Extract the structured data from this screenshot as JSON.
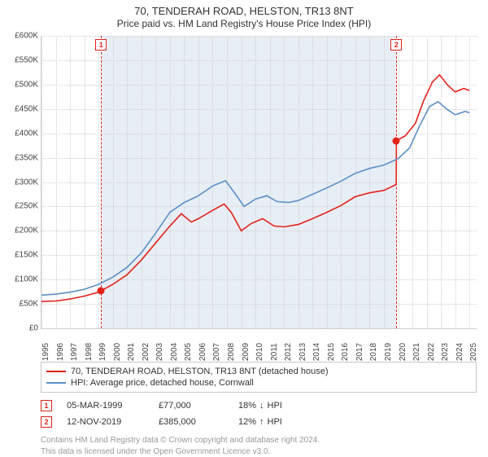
{
  "title": "70, TENDERAH ROAD, HELSTON, TR13 8NT",
  "subtitle": "Price paid vs. HM Land Registry's House Price Index (HPI)",
  "chart": {
    "type": "line",
    "background_color": "#ffffff",
    "grid_color": "#cfcfcf",
    "axis_color": "#cccccc",
    "shaded_band_color": "#e8eef5",
    "shaded_band": {
      "x_start": 1999.18,
      "x_end": 2019.87
    },
    "xlim": [
      1995,
      2025.5
    ],
    "ylim": [
      0,
      600000
    ],
    "y_ticks": [
      0,
      50000,
      100000,
      150000,
      200000,
      250000,
      300000,
      350000,
      400000,
      450000,
      500000,
      550000,
      600000
    ],
    "y_tick_labels": [
      "£0",
      "£50K",
      "£100K",
      "£150K",
      "£200K",
      "£250K",
      "£300K",
      "£350K",
      "£400K",
      "£450K",
      "£500K",
      "£550K",
      "£600K"
    ],
    "x_ticks": [
      1995,
      1996,
      1997,
      1998,
      1999,
      2000,
      2001,
      2002,
      2003,
      2004,
      2005,
      2006,
      2007,
      2008,
      2009,
      2010,
      2011,
      2012,
      2013,
      2014,
      2015,
      2016,
      2017,
      2018,
      2019,
      2020,
      2021,
      2022,
      2023,
      2024,
      2025
    ],
    "label_fontsize": 10,
    "title_fontsize": 13,
    "line_width": 1.6,
    "series": [
      {
        "key": "property",
        "label": "70, TENDERAH ROAD, HELSTON, TR13 8NT (detached house)",
        "color": "#e2231a",
        "points": [
          [
            1995.0,
            55000
          ],
          [
            1996.0,
            56000
          ],
          [
            1997.0,
            60000
          ],
          [
            1998.0,
            66000
          ],
          [
            1999.0,
            74000
          ],
          [
            1999.18,
            77000
          ],
          [
            2000.0,
            90000
          ],
          [
            2001.0,
            110000
          ],
          [
            2002.0,
            140000
          ],
          [
            2003.0,
            175000
          ],
          [
            2004.0,
            210000
          ],
          [
            2004.8,
            235000
          ],
          [
            2005.5,
            218000
          ],
          [
            2006.0,
            225000
          ],
          [
            2007.0,
            242000
          ],
          [
            2007.8,
            255000
          ],
          [
            2008.3,
            238000
          ],
          [
            2009.0,
            200000
          ],
          [
            2009.7,
            215000
          ],
          [
            2010.5,
            225000
          ],
          [
            2011.3,
            210000
          ],
          [
            2012.0,
            208000
          ],
          [
            2013.0,
            213000
          ],
          [
            2014.0,
            225000
          ],
          [
            2015.0,
            238000
          ],
          [
            2016.0,
            252000
          ],
          [
            2017.0,
            270000
          ],
          [
            2018.0,
            278000
          ],
          [
            2019.0,
            283000
          ],
          [
            2019.87,
            295000
          ],
          [
            2019.88,
            385000
          ],
          [
            2020.5,
            395000
          ],
          [
            2021.2,
            420000
          ],
          [
            2021.8,
            468000
          ],
          [
            2022.4,
            505000
          ],
          [
            2022.9,
            520000
          ],
          [
            2023.5,
            498000
          ],
          [
            2024.0,
            485000
          ],
          [
            2024.6,
            492000
          ],
          [
            2025.0,
            488000
          ]
        ]
      },
      {
        "key": "hpi",
        "label": "HPI: Average price, detached house, Cornwall",
        "color": "#5b8fc7",
        "points": [
          [
            1995.0,
            68000
          ],
          [
            1996.0,
            70000
          ],
          [
            1997.0,
            74000
          ],
          [
            1998.0,
            80000
          ],
          [
            1999.0,
            90000
          ],
          [
            2000.0,
            105000
          ],
          [
            2001.0,
            125000
          ],
          [
            2002.0,
            155000
          ],
          [
            2003.0,
            195000
          ],
          [
            2004.0,
            238000
          ],
          [
            2005.0,
            258000
          ],
          [
            2006.0,
            272000
          ],
          [
            2007.0,
            292000
          ],
          [
            2007.9,
            303000
          ],
          [
            2008.6,
            275000
          ],
          [
            2009.2,
            250000
          ],
          [
            2010.0,
            265000
          ],
          [
            2010.8,
            272000
          ],
          [
            2011.5,
            260000
          ],
          [
            2012.3,
            258000
          ],
          [
            2013.0,
            262000
          ],
          [
            2014.0,
            275000
          ],
          [
            2015.0,
            288000
          ],
          [
            2016.0,
            302000
          ],
          [
            2017.0,
            318000
          ],
          [
            2018.0,
            328000
          ],
          [
            2019.0,
            335000
          ],
          [
            2020.0,
            348000
          ],
          [
            2020.8,
            370000
          ],
          [
            2021.5,
            415000
          ],
          [
            2022.2,
            455000
          ],
          [
            2022.8,
            465000
          ],
          [
            2023.4,
            450000
          ],
          [
            2024.0,
            438000
          ],
          [
            2024.7,
            445000
          ],
          [
            2025.0,
            442000
          ]
        ]
      }
    ],
    "sale_markers": [
      {
        "n": 1,
        "x": 1999.18,
        "y": 77000,
        "color": "#e2231a"
      },
      {
        "n": 2,
        "x": 2019.87,
        "y": 385000,
        "color": "#e2231a"
      }
    ],
    "sale_vlines": [
      {
        "n": 1,
        "x": 1999.18,
        "color": "#e2231a",
        "label_y": "top"
      },
      {
        "n": 2,
        "x": 2019.87,
        "color": "#e2231a",
        "label_y": "top"
      }
    ]
  },
  "legend": {
    "series": [
      {
        "color": "#e2231a",
        "label": "70, TENDERAH ROAD, HELSTON, TR13 8NT (detached house)"
      },
      {
        "color": "#5b8fc7",
        "label": "HPI: Average price, detached house, Cornwall"
      }
    ]
  },
  "sales": [
    {
      "n": "1",
      "date": "05-MAR-1999",
      "price": "£77,000",
      "hpi_pct": "18%",
      "hpi_dir": "down",
      "hpi_suffix": "HPI",
      "color": "#e2231a"
    },
    {
      "n": "2",
      "date": "12-NOV-2019",
      "price": "£385,000",
      "hpi_pct": "12%",
      "hpi_dir": "up",
      "hpi_suffix": "HPI",
      "color": "#e2231a"
    }
  ],
  "footer": {
    "line1": "Contains HM Land Registry data © Crown copyright and database right 2024.",
    "line2": "This data is licensed under the Open Government Licence v3.0."
  },
  "icons": {
    "up": "↑",
    "down": "↓"
  }
}
